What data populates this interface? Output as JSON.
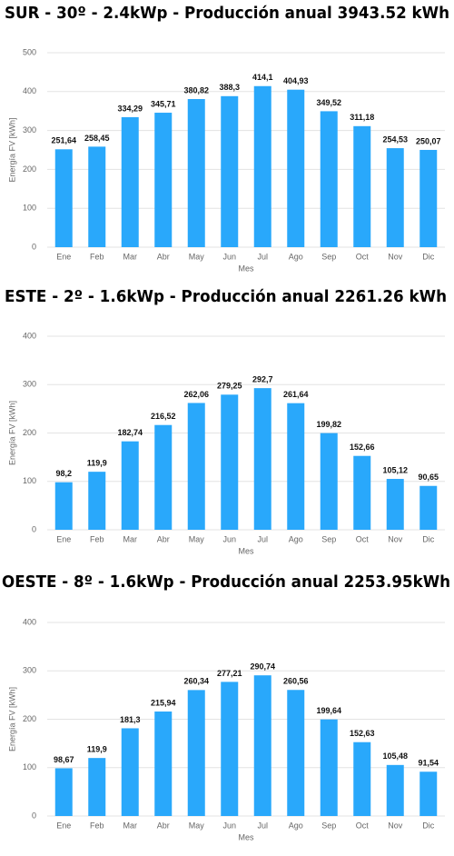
{
  "chart_data": [
    {
      "type": "bar",
      "title": "SUR - 30º - 2.4kWp - Producción anual 3943.52 kWh",
      "x_label": "Mes",
      "y_label": "Energía FV [kWh]",
      "categories": [
        "Ene",
        "Feb",
        "Mar",
        "Abr",
        "May",
        "Jun",
        "Jul",
        "Ago",
        "Sep",
        "Oct",
        "Nov",
        "Dic"
      ],
      "values": [
        251.64,
        258.45,
        334.29,
        345.71,
        380.82,
        388.3,
        414.1,
        404.93,
        349.52,
        311.18,
        254.53,
        250.07
      ],
      "value_labels": [
        "251,64",
        "258,45",
        "334,29",
        "345,71",
        "380,82",
        "388,3",
        "414,1",
        "404,93",
        "349,52",
        "311,18",
        "254,53",
        "250,07"
      ],
      "color": "#29a8fb",
      "ylim": [
        0,
        500
      ],
      "yticks": [
        0,
        100,
        200,
        300,
        400,
        500
      ],
      "grid": true
    },
    {
      "type": "bar",
      "title": "ESTE - 2º - 1.6kWp - Producción anual 2261.26 kWh",
      "x_label": "Mes",
      "y_label": "Energía FV [kWh]",
      "categories": [
        "Ene",
        "Feb",
        "Mar",
        "Abr",
        "May",
        "Jun",
        "Jul",
        "Ago",
        "Sep",
        "Oct",
        "Nov",
        "Dic"
      ],
      "values": [
        98.2,
        119.9,
        182.74,
        216.52,
        262.06,
        279.25,
        292.7,
        261.64,
        199.82,
        152.66,
        105.12,
        90.65
      ],
      "value_labels": [
        "98,2",
        "119,9",
        "182,74",
        "216,52",
        "262,06",
        "279,25",
        "292,7",
        "261,64",
        "199,82",
        "152,66",
        "105,12",
        "90,65"
      ],
      "color": "#29a8fb",
      "ylim": [
        0,
        400
      ],
      "yticks": [
        0,
        100,
        200,
        300,
        400
      ],
      "grid": true
    },
    {
      "type": "bar",
      "title": "OESTE - 8º - 1.6kWp - Producción anual 2253.95kWh",
      "x_label": "Mes",
      "y_label": "Energía FV [kWh]",
      "categories": [
        "Ene",
        "Feb",
        "Mar",
        "Abr",
        "May",
        "Jun",
        "Jul",
        "Ago",
        "Sep",
        "Oct",
        "Nov",
        "Dic"
      ],
      "values": [
        98.67,
        119.9,
        181.3,
        215.94,
        260.34,
        277.21,
        290.74,
        260.56,
        199.64,
        152.63,
        105.48,
        91.54
      ],
      "value_labels": [
        "98,67",
        "119,9",
        "181,3",
        "215,94",
        "260,34",
        "277,21",
        "290,74",
        "260,56",
        "199,64",
        "152,63",
        "105,48",
        "91,54"
      ],
      "color": "#29a8fb",
      "ylim": [
        0,
        400
      ],
      "yticks": [
        0,
        100,
        200,
        300,
        400
      ],
      "grid": true
    }
  ]
}
